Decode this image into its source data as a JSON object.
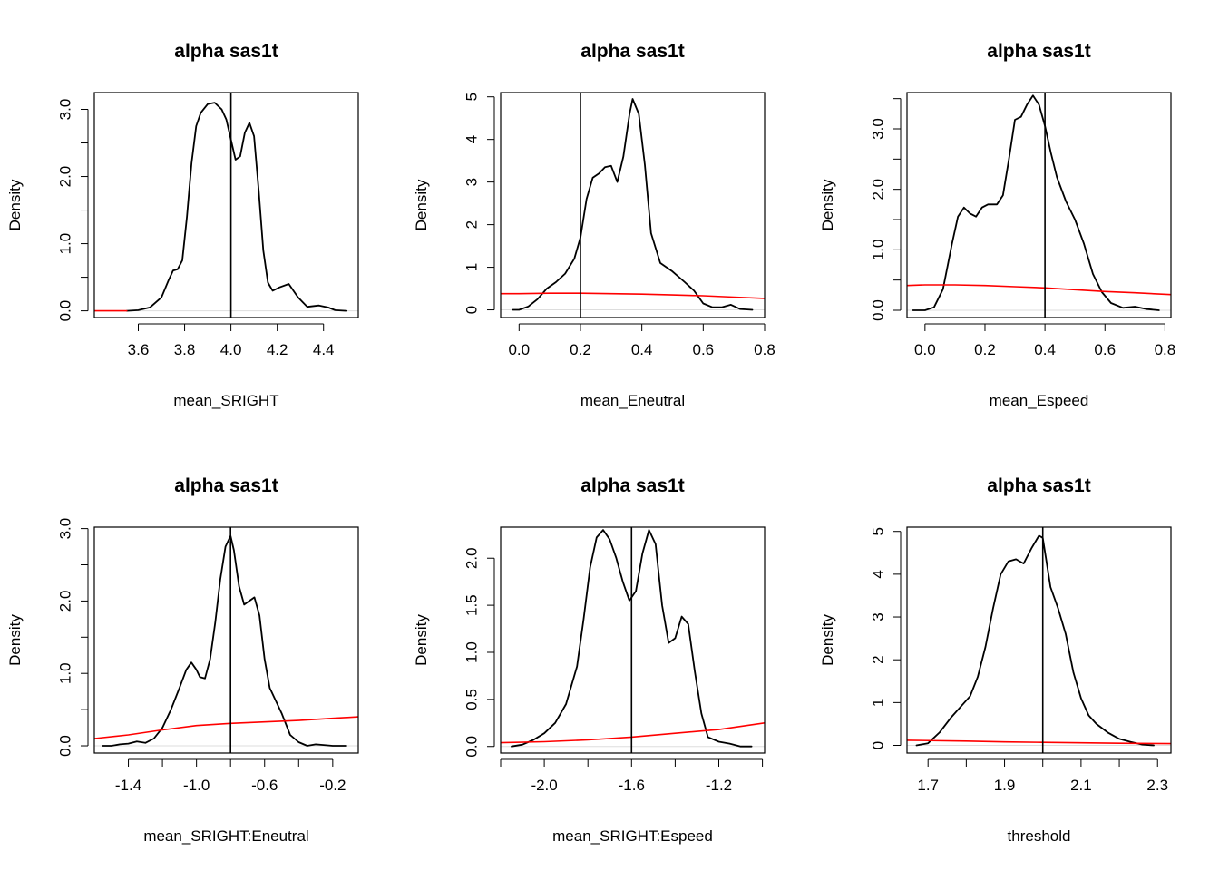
{
  "figure": {
    "background": "#ffffff",
    "prior_color": "#ff0000",
    "posterior_color": "#000000",
    "true_line_color": "#000000",
    "zero_line_color": "#dddddd"
  },
  "chart_data": [
    {
      "type": "line",
      "title": "alpha sas1t",
      "xlabel": "mean_SRIGHT",
      "ylabel": "Density",
      "xlim": [
        3.41,
        4.55
      ],
      "ylim": [
        -0.1,
        3.25
      ],
      "xticks": [
        3.6,
        3.8,
        4.0,
        4.2,
        4.4
      ],
      "xtick_labels": [
        "3.6",
        "3.8",
        "4.0",
        "4.2",
        "4.4"
      ],
      "yticks": [
        0,
        0.5,
        1.0,
        1.5,
        2.0,
        2.5,
        3.0
      ],
      "ytick_labels": [
        "0.0",
        "",
        "1.0",
        "",
        "2.0",
        "",
        "3.0"
      ],
      "true_value": 4.0,
      "series": [
        {
          "name": "posterior",
          "color": "#000000",
          "x": [
            3.55,
            3.6,
            3.65,
            3.7,
            3.73,
            3.75,
            3.77,
            3.79,
            3.81,
            3.83,
            3.85,
            3.87,
            3.9,
            3.93,
            3.96,
            3.98,
            4.0,
            4.02,
            4.04,
            4.06,
            4.08,
            4.1,
            4.12,
            4.14,
            4.16,
            4.18,
            4.21,
            4.25,
            4.29,
            4.33,
            4.38,
            4.42,
            4.45,
            4.5
          ],
          "y": [
            0.0,
            0.01,
            0.05,
            0.2,
            0.45,
            0.6,
            0.62,
            0.75,
            1.4,
            2.2,
            2.75,
            2.95,
            3.08,
            3.1,
            3.0,
            2.85,
            2.55,
            2.25,
            2.3,
            2.65,
            2.8,
            2.6,
            1.8,
            0.9,
            0.42,
            0.3,
            0.35,
            0.4,
            0.2,
            0.06,
            0.08,
            0.05,
            0.01,
            0.0
          ]
        },
        {
          "name": "prior",
          "color": "#ff0000",
          "x": [
            3.41,
            3.45,
            3.5,
            3.55
          ],
          "y": [
            0.0,
            0.0,
            0.0,
            0.0
          ]
        }
      ]
    },
    {
      "type": "line",
      "title": "alpha sas1t",
      "xlabel": "mean_Eneutral",
      "ylabel": "Density",
      "xlim": [
        -0.06,
        0.8
      ],
      "ylim": [
        -0.18,
        5.1
      ],
      "xticks": [
        0.0,
        0.2,
        0.4,
        0.6,
        0.8
      ],
      "xtick_labels": [
        "0.0",
        "0.2",
        "0.4",
        "0.6",
        "0.8"
      ],
      "yticks": [
        0,
        1,
        2,
        3,
        4,
        5
      ],
      "ytick_labels": [
        "0",
        "1",
        "2",
        "3",
        "4",
        "5"
      ],
      "true_value": 0.2,
      "series": [
        {
          "name": "posterior",
          "color": "#000000",
          "x": [
            -0.02,
            0.0,
            0.03,
            0.06,
            0.09,
            0.12,
            0.15,
            0.18,
            0.2,
            0.22,
            0.24,
            0.26,
            0.28,
            0.3,
            0.32,
            0.34,
            0.36,
            0.37,
            0.39,
            0.41,
            0.43,
            0.46,
            0.5,
            0.54,
            0.57,
            0.6,
            0.63,
            0.66,
            0.69,
            0.72,
            0.76
          ],
          "y": [
            0.0,
            0.0,
            0.08,
            0.25,
            0.5,
            0.65,
            0.85,
            1.2,
            1.7,
            2.6,
            3.1,
            3.2,
            3.35,
            3.38,
            3.0,
            3.6,
            4.6,
            4.95,
            4.6,
            3.4,
            1.8,
            1.1,
            0.9,
            0.65,
            0.45,
            0.15,
            0.06,
            0.06,
            0.12,
            0.02,
            0.0
          ]
        },
        {
          "name": "prior",
          "color": "#ff0000",
          "x": [
            -0.06,
            0.0,
            0.1,
            0.2,
            0.3,
            0.4,
            0.5,
            0.6,
            0.7,
            0.8
          ],
          "y": [
            0.38,
            0.38,
            0.39,
            0.39,
            0.38,
            0.37,
            0.35,
            0.33,
            0.3,
            0.27
          ]
        }
      ]
    },
    {
      "type": "line",
      "title": "alpha sas1t",
      "xlabel": "mean_Espeed",
      "ylabel": "Density",
      "xlim": [
        -0.06,
        0.82
      ],
      "ylim": [
        -0.12,
        3.6
      ],
      "xticks": [
        0.0,
        0.2,
        0.4,
        0.6,
        0.8
      ],
      "xtick_labels": [
        "0.0",
        "0.2",
        "0.4",
        "0.6",
        "0.8"
      ],
      "yticks": [
        0,
        0.5,
        1.0,
        1.5,
        2.0,
        2.5,
        3.0,
        3.5
      ],
      "ytick_labels": [
        "0.0",
        "",
        "1.0",
        "",
        "2.0",
        "",
        "3.0",
        ""
      ],
      "true_value": 0.4,
      "series": [
        {
          "name": "posterior",
          "color": "#000000",
          "x": [
            -0.04,
            0.0,
            0.03,
            0.06,
            0.09,
            0.11,
            0.13,
            0.15,
            0.17,
            0.19,
            0.21,
            0.24,
            0.26,
            0.28,
            0.3,
            0.32,
            0.34,
            0.36,
            0.38,
            0.4,
            0.42,
            0.44,
            0.47,
            0.5,
            0.53,
            0.56,
            0.59,
            0.62,
            0.66,
            0.7,
            0.74,
            0.78
          ],
          "y": [
            0.0,
            0.0,
            0.05,
            0.35,
            1.1,
            1.55,
            1.7,
            1.6,
            1.55,
            1.7,
            1.75,
            1.75,
            1.9,
            2.5,
            3.15,
            3.2,
            3.4,
            3.55,
            3.4,
            3.05,
            2.6,
            2.2,
            1.8,
            1.5,
            1.1,
            0.6,
            0.3,
            0.12,
            0.04,
            0.06,
            0.02,
            0.0
          ]
        },
        {
          "name": "prior",
          "color": "#ff0000",
          "x": [
            -0.06,
            0.0,
            0.1,
            0.2,
            0.3,
            0.4,
            0.5,
            0.6,
            0.7,
            0.82
          ],
          "y": [
            0.41,
            0.42,
            0.42,
            0.41,
            0.39,
            0.37,
            0.34,
            0.31,
            0.29,
            0.26
          ]
        }
      ]
    },
    {
      "type": "line",
      "title": "alpha sas1t",
      "xlabel": "mean_SRIGHT:Eneutral",
      "ylabel": "Density",
      "xlim": [
        -1.6,
        -0.05
      ],
      "ylim": [
        -0.1,
        3.02
      ],
      "xticks": [
        -1.4,
        -1.2,
        -1.0,
        -0.8,
        -0.6,
        -0.4,
        -0.2
      ],
      "xtick_labels": [
        "-1.4",
        "",
        "-1.0",
        "",
        "-0.6",
        "",
        "-0.2"
      ],
      "yticks": [
        0,
        0.5,
        1.0,
        1.5,
        2.0,
        2.5,
        3.0
      ],
      "ytick_labels": [
        "0.0",
        "",
        "1.0",
        "",
        "2.0",
        "",
        "3.0"
      ],
      "true_value": -0.8,
      "series": [
        {
          "name": "posterior",
          "color": "#000000",
          "x": [
            -1.55,
            -1.5,
            -1.45,
            -1.4,
            -1.35,
            -1.3,
            -1.25,
            -1.2,
            -1.15,
            -1.1,
            -1.06,
            -1.03,
            -1.0,
            -0.98,
            -0.95,
            -0.92,
            -0.89,
            -0.86,
            -0.83,
            -0.8,
            -0.78,
            -0.75,
            -0.72,
            -0.69,
            -0.66,
            -0.63,
            -0.6,
            -0.57,
            -0.54,
            -0.5,
            -0.45,
            -0.4,
            -0.35,
            -0.3,
            -0.2,
            -0.12
          ],
          "y": [
            0.0,
            0.0,
            0.02,
            0.03,
            0.06,
            0.04,
            0.1,
            0.25,
            0.5,
            0.8,
            1.05,
            1.15,
            1.05,
            0.95,
            0.93,
            1.2,
            1.7,
            2.3,
            2.75,
            2.9,
            2.7,
            2.2,
            1.95,
            2.0,
            2.05,
            1.8,
            1.2,
            0.8,
            0.65,
            0.45,
            0.15,
            0.05,
            0.0,
            0.02,
            0.0,
            0.0
          ]
        },
        {
          "name": "prior",
          "color": "#ff0000",
          "x": [
            -1.6,
            -1.4,
            -1.2,
            -1.0,
            -0.8,
            -0.6,
            -0.4,
            -0.2,
            -0.05
          ],
          "y": [
            0.1,
            0.15,
            0.22,
            0.28,
            0.31,
            0.33,
            0.35,
            0.38,
            0.4
          ]
        }
      ]
    },
    {
      "type": "line",
      "title": "alpha sas1t",
      "xlabel": "mean_SRIGHT:Espeed",
      "ylabel": "Density",
      "xlim": [
        -2.2,
        -0.99
      ],
      "ylim": [
        -0.07,
        2.33
      ],
      "xticks": [
        -2.2,
        -2.0,
        -1.8,
        -1.6,
        -1.4,
        -1.2,
        -1.0
      ],
      "xtick_labels": [
        "",
        "-2.0",
        "",
        "-1.6",
        "",
        "-1.2",
        ""
      ],
      "yticks": [
        0,
        0.5,
        1.0,
        1.5,
        2.0
      ],
      "ytick_labels": [
        "0.0",
        "0.5",
        "1.0",
        "1.5",
        "2.0"
      ],
      "true_value": -1.6,
      "series": [
        {
          "name": "posterior",
          "color": "#000000",
          "x": [
            -2.15,
            -2.1,
            -2.05,
            -2.0,
            -1.95,
            -1.9,
            -1.85,
            -1.82,
            -1.79,
            -1.76,
            -1.73,
            -1.7,
            -1.67,
            -1.64,
            -1.61,
            -1.58,
            -1.55,
            -1.52,
            -1.49,
            -1.46,
            -1.43,
            -1.4,
            -1.37,
            -1.34,
            -1.31,
            -1.28,
            -1.25,
            -1.2,
            -1.15,
            -1.1,
            -1.05
          ],
          "y": [
            0.0,
            0.02,
            0.07,
            0.14,
            0.25,
            0.45,
            0.85,
            1.35,
            1.9,
            2.22,
            2.3,
            2.2,
            2.0,
            1.75,
            1.55,
            1.65,
            2.05,
            2.3,
            2.15,
            1.5,
            1.1,
            1.15,
            1.38,
            1.3,
            0.8,
            0.35,
            0.1,
            0.05,
            0.03,
            0.0,
            0.0
          ]
        },
        {
          "name": "prior",
          "color": "#ff0000",
          "x": [
            -2.2,
            -2.0,
            -1.8,
            -1.6,
            -1.4,
            -1.2,
            -0.99
          ],
          "y": [
            0.04,
            0.05,
            0.07,
            0.1,
            0.14,
            0.18,
            0.25
          ]
        }
      ]
    },
    {
      "type": "line",
      "title": "alpha sas1t",
      "xlabel": "threshold",
      "ylabel": "Density",
      "xlim": [
        1.645,
        2.335
      ],
      "ylim": [
        -0.18,
        5.1
      ],
      "xticks": [
        1.7,
        1.8,
        1.9,
        2.0,
        2.1,
        2.2,
        2.3
      ],
      "xtick_labels": [
        "1.7",
        "",
        "1.9",
        "",
        "2.1",
        "",
        "2.3"
      ],
      "yticks": [
        0,
        1,
        2,
        3,
        4,
        5
      ],
      "ytick_labels": [
        "0",
        "1",
        "2",
        "3",
        "4",
        "5"
      ],
      "true_value": 2.0,
      "series": [
        {
          "name": "posterior",
          "color": "#000000",
          "x": [
            1.67,
            1.7,
            1.73,
            1.76,
            1.79,
            1.81,
            1.83,
            1.85,
            1.87,
            1.89,
            1.91,
            1.93,
            1.95,
            1.97,
            1.99,
            2.0,
            2.02,
            2.04,
            2.06,
            2.08,
            2.1,
            2.12,
            2.14,
            2.17,
            2.2,
            2.23,
            2.26,
            2.29
          ],
          "y": [
            0.0,
            0.05,
            0.3,
            0.65,
            0.95,
            1.15,
            1.6,
            2.3,
            3.2,
            4.0,
            4.3,
            4.35,
            4.25,
            4.6,
            4.9,
            4.85,
            3.7,
            3.2,
            2.6,
            1.7,
            1.1,
            0.7,
            0.5,
            0.3,
            0.15,
            0.08,
            0.02,
            0.0
          ]
        },
        {
          "name": "prior",
          "color": "#ff0000",
          "x": [
            1.645,
            1.8,
            1.9,
            2.0,
            2.1,
            2.2,
            2.335
          ],
          "y": [
            0.12,
            0.1,
            0.08,
            0.07,
            0.06,
            0.05,
            0.04
          ]
        }
      ]
    }
  ]
}
